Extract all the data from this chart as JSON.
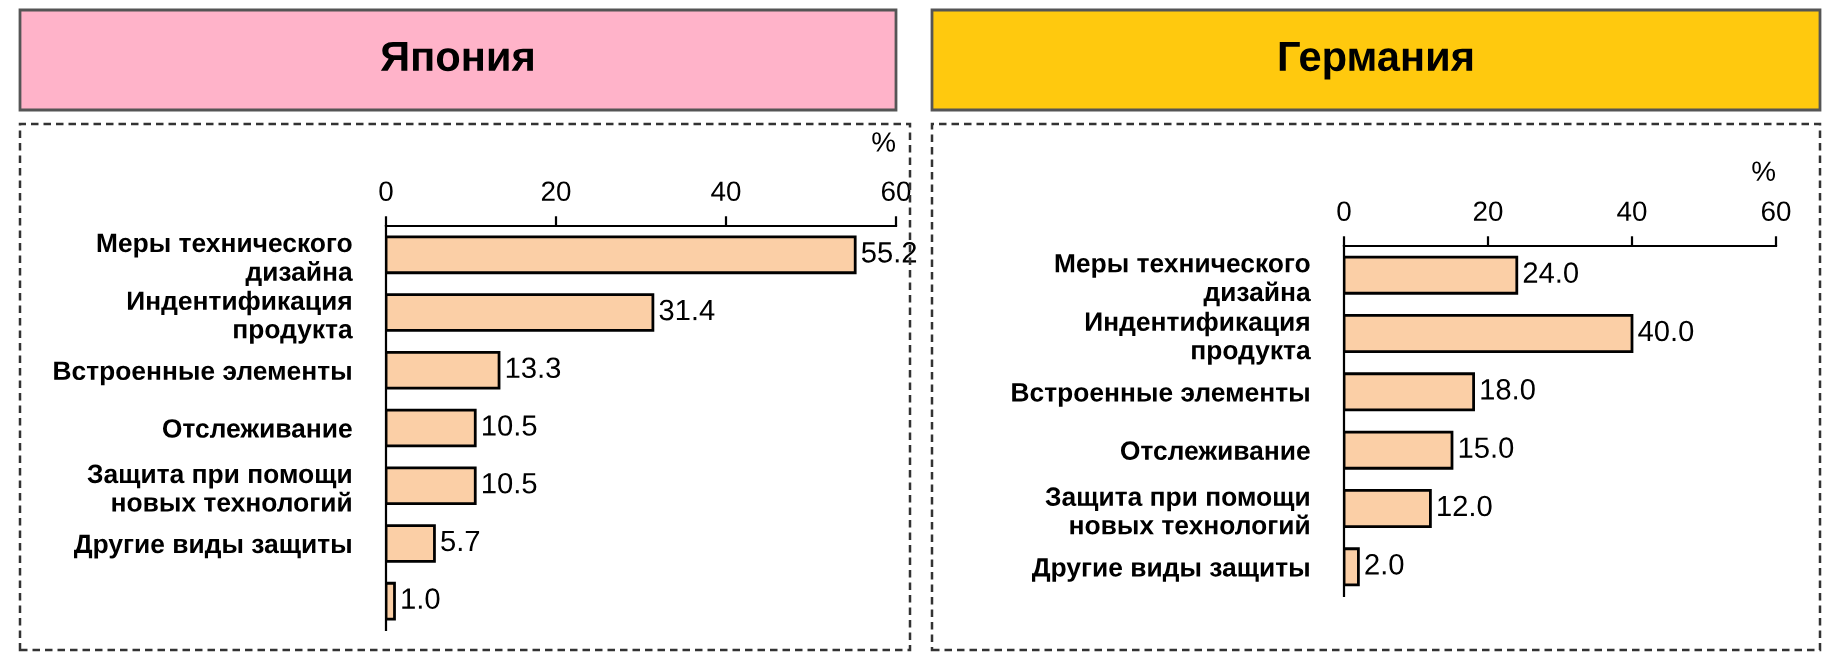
{
  "chart_data": [
    {
      "type": "bar",
      "orientation": "horizontal",
      "title": "Япония",
      "xlabel": "%",
      "categories": [
        "Меры технического\nдизайна",
        "Индентификация\nпродукта",
        "Встроенные элементы",
        "Отслеживание",
        "Защита при помощи\nновых технологий",
        "Другие виды защиты",
        null
      ],
      "values": [
        55.2,
        31.4,
        13.3,
        10.5,
        10.5,
        5.7,
        1.0
      ],
      "value_labels": [
        "55.2",
        "31.4",
        "13.3",
        "10.5",
        "10.5",
        "5.7",
        "1.0"
      ],
      "color": "#fbcfa6",
      "xlim": [
        0,
        60
      ],
      "xticks": [
        0,
        20,
        40,
        60
      ],
      "grid": false,
      "legend": false
    },
    {
      "type": "bar",
      "orientation": "horizontal",
      "title": "Германия",
      "xlabel": "%",
      "categories": [
        "Меры технического\nдизайна",
        "Индентификация\nпродукта",
        "Встроенные элементы",
        "Отслеживание",
        "Защита при помощи\nновых технологий",
        "Другие виды защиты"
      ],
      "values": [
        24.0,
        40.0,
        18.0,
        15.0,
        12.0,
        2.0
      ],
      "value_labels": [
        "24.0",
        "40.0",
        "18.0",
        "15.0",
        "12.0",
        "2.0"
      ],
      "color": "#fbcfa6",
      "xlim": [
        0,
        60
      ],
      "xticks": [
        0,
        20,
        40,
        60
      ],
      "grid": false,
      "legend": false
    }
  ]
}
